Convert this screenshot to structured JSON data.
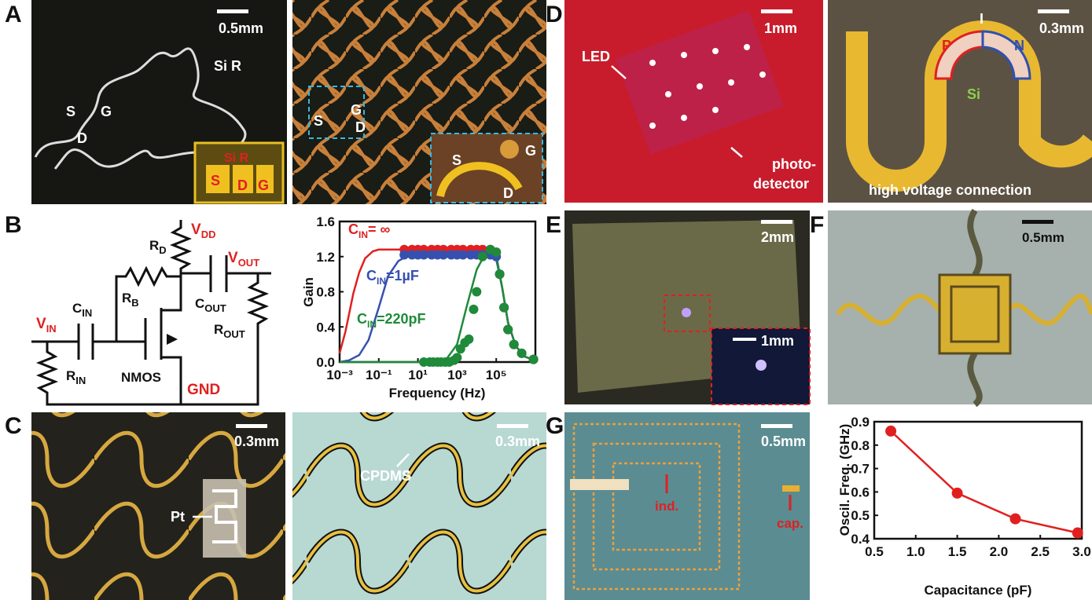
{
  "panel_labels": {
    "a": "A",
    "b": "B",
    "c": "C",
    "d": "D",
    "e": "E",
    "f": "F",
    "g": "G"
  },
  "panel_a": {
    "left": {
      "scale_bar": "0.5mm",
      "si_r": "Si R",
      "s": "S",
      "g": "G",
      "d": "D",
      "inset": {
        "si_r": "Si R",
        "s": "S",
        "d": "D",
        "g": "G"
      }
    },
    "right": {
      "g": "G",
      "s": "S",
      "d": "D",
      "inset": {
        "s": "S",
        "g": "G",
        "d": "D"
      }
    }
  },
  "panel_b": {
    "circuit": {
      "vdd": {
        "base": "V",
        "sub": "DD"
      },
      "rd": {
        "base": "R",
        "sub": "D"
      },
      "vout": {
        "base": "V",
        "sub": "OUT"
      },
      "rb": {
        "base": "R",
        "sub": "B"
      },
      "cin": {
        "base": "C",
        "sub": "IN"
      },
      "cout": {
        "base": "C",
        "sub": "OUT"
      },
      "vin": {
        "base": "V",
        "sub": "IN"
      },
      "rout": {
        "base": "R",
        "sub": "OUT"
      },
      "rin": {
        "base": "R",
        "sub": "IN"
      },
      "nmos": "NMOS",
      "gnd": "GND"
    }
  },
  "panel_c": {
    "left": {
      "scale_bar": "0.3mm",
      "pt": "Pt"
    },
    "right": {
      "scale_bar": "0.3mm",
      "cpdms": "CPDMS"
    }
  },
  "panel_d": {
    "left": {
      "scale_bar": "1mm",
      "led": "LED",
      "photodetector": [
        "photo-",
        "detector"
      ]
    },
    "right": {
      "scale_bar": "0.3mm",
      "i": "I",
      "p": "P",
      "n": "N",
      "si": "Si",
      "connection": "high voltage connection"
    }
  },
  "panel_e": {
    "scale_bar": "2mm",
    "inset_scale_bar": "1mm"
  },
  "panel_f": {
    "scale_bar": "0.5mm"
  },
  "panel_g": {
    "scale_bar": "0.5mm",
    "ind": "ind.",
    "cap": "cap."
  },
  "chart_data": [
    {
      "type": "scatter",
      "x_label": "Frequency (Hz)",
      "y_label": "Gain",
      "xscale": "log",
      "xlim": [
        0.001,
        10000000
      ],
      "xticks": [
        {
          "value": 0.001,
          "label": "10⁻³"
        },
        {
          "value": 0.1,
          "label": "10⁻¹"
        },
        {
          "value": 10,
          "label": "10¹"
        },
        {
          "value": 1000,
          "label": "10³"
        },
        {
          "value": 100000,
          "label": "10⁵"
        }
      ],
      "ylim": [
        0,
        1.6
      ],
      "yticks": [
        {
          "value": 0,
          "label": "0.0"
        },
        0.4,
        0.8,
        1.2,
        1.6
      ],
      "series": [
        {
          "label": {
            "base": "C",
            "sub": "IN",
            "rest": "= ∞"
          },
          "color": "#e02020",
          "x": [
            2,
            5,
            10,
            20,
            50,
            100,
            200,
            500,
            1000,
            2000,
            5000,
            10000,
            20000,
            50000,
            100000,
            150000,
            250000,
            400000,
            800000,
            2000000,
            8000000
          ],
          "values": [
            1.28,
            1.28,
            1.28,
            1.28,
            1.28,
            1.28,
            1.28,
            1.28,
            1.28,
            1.28,
            1.28,
            1.28,
            1.28,
            1.28,
            1.25,
            1.0,
            0.62,
            0.37,
            0.2,
            0.1,
            0.03
          ],
          "fit_x": [
            0.001,
            0.002,
            0.005,
            0.01,
            0.02,
            0.05,
            0.1,
            1,
            100,
            10000,
            50000,
            100000,
            200000,
            400000,
            1000000,
            3000000,
            10000000
          ],
          "fit_values": [
            0.1,
            0.35,
            0.78,
            1.02,
            1.18,
            1.26,
            1.28,
            1.28,
            1.28,
            1.28,
            1.27,
            1.2,
            0.85,
            0.45,
            0.18,
            0.06,
            0.02
          ]
        },
        {
          "label": {
            "base": "C",
            "sub": "IN",
            "rest": "=1µF"
          },
          "color": "#3650b0",
          "x": [
            2,
            5,
            10,
            20,
            50,
            100,
            200,
            500,
            1000,
            2000,
            5000,
            10000,
            20000,
            50000,
            100000,
            150000,
            250000,
            400000,
            800000,
            2000000,
            8000000
          ],
          "values": [
            1.22,
            1.22,
            1.22,
            1.22,
            1.22,
            1.22,
            1.22,
            1.22,
            1.22,
            1.22,
            1.22,
            1.22,
            1.22,
            1.22,
            1.2,
            1.0,
            0.62,
            0.37,
            0.2,
            0.1,
            0.03
          ],
          "fit_x": [
            0.001,
            0.003,
            0.01,
            0.03,
            0.1,
            0.3,
            1,
            3,
            10,
            100,
            10000,
            50000,
            100000,
            200000,
            400000,
            1000000,
            3000000,
            10000000
          ],
          "fit_values": [
            0,
            0.02,
            0.08,
            0.25,
            0.62,
            0.98,
            1.15,
            1.21,
            1.23,
            1.23,
            1.23,
            1.22,
            1.17,
            0.85,
            0.45,
            0.18,
            0.06,
            0.02
          ]
        },
        {
          "label": {
            "base": "C",
            "sub": "IN",
            "rest": "=220pF"
          },
          "color": "#1f8a3a",
          "x": [
            20,
            40,
            60,
            100,
            150,
            250,
            400,
            700,
            1000,
            1500,
            2500,
            4000,
            7000,
            10000,
            20000,
            50000,
            100000,
            150000,
            250000,
            400000,
            800000,
            2000000,
            8000000
          ],
          "values": [
            0,
            0,
            0,
            0,
            0,
            0,
            0,
            0.02,
            0.05,
            0.15,
            0.22,
            0.26,
            0.6,
            0.8,
            1.2,
            1.28,
            1.25,
            1.0,
            0.62,
            0.37,
            0.2,
            0.1,
            0.03
          ],
          "fit_x": [
            0.001,
            10,
            100,
            300,
            1000,
            3000,
            10000,
            30000,
            100000,
            200000,
            400000,
            1000000,
            3000000,
            10000000
          ],
          "fit_values": [
            0,
            0,
            0.01,
            0.04,
            0.2,
            0.62,
            1.05,
            1.25,
            1.22,
            0.85,
            0.45,
            0.18,
            0.06,
            0.02
          ]
        }
      ]
    },
    {
      "type": "line",
      "x_label": "Capacitance (pF)",
      "y_label": "Oscil. Freq. (GHz)",
      "xlim": [
        0.5,
        3.0
      ],
      "xticks": [
        0.5,
        {
          "value": 1,
          "label": "1.0"
        },
        1.5,
        {
          "value": 2,
          "label": "2.0"
        },
        2.5,
        {
          "value": 3,
          "label": "3.0"
        }
      ],
      "ylim": [
        0.4,
        0.9
      ],
      "yticks": [
        0.4,
        0.5,
        0.6,
        0.7,
        0.8,
        0.9
      ],
      "series": [
        {
          "color": "#e02020",
          "x": [
            0.7,
            1.5,
            2.2,
            2.95
          ],
          "values": [
            0.86,
            0.595,
            0.485,
            0.425
          ]
        }
      ]
    }
  ]
}
